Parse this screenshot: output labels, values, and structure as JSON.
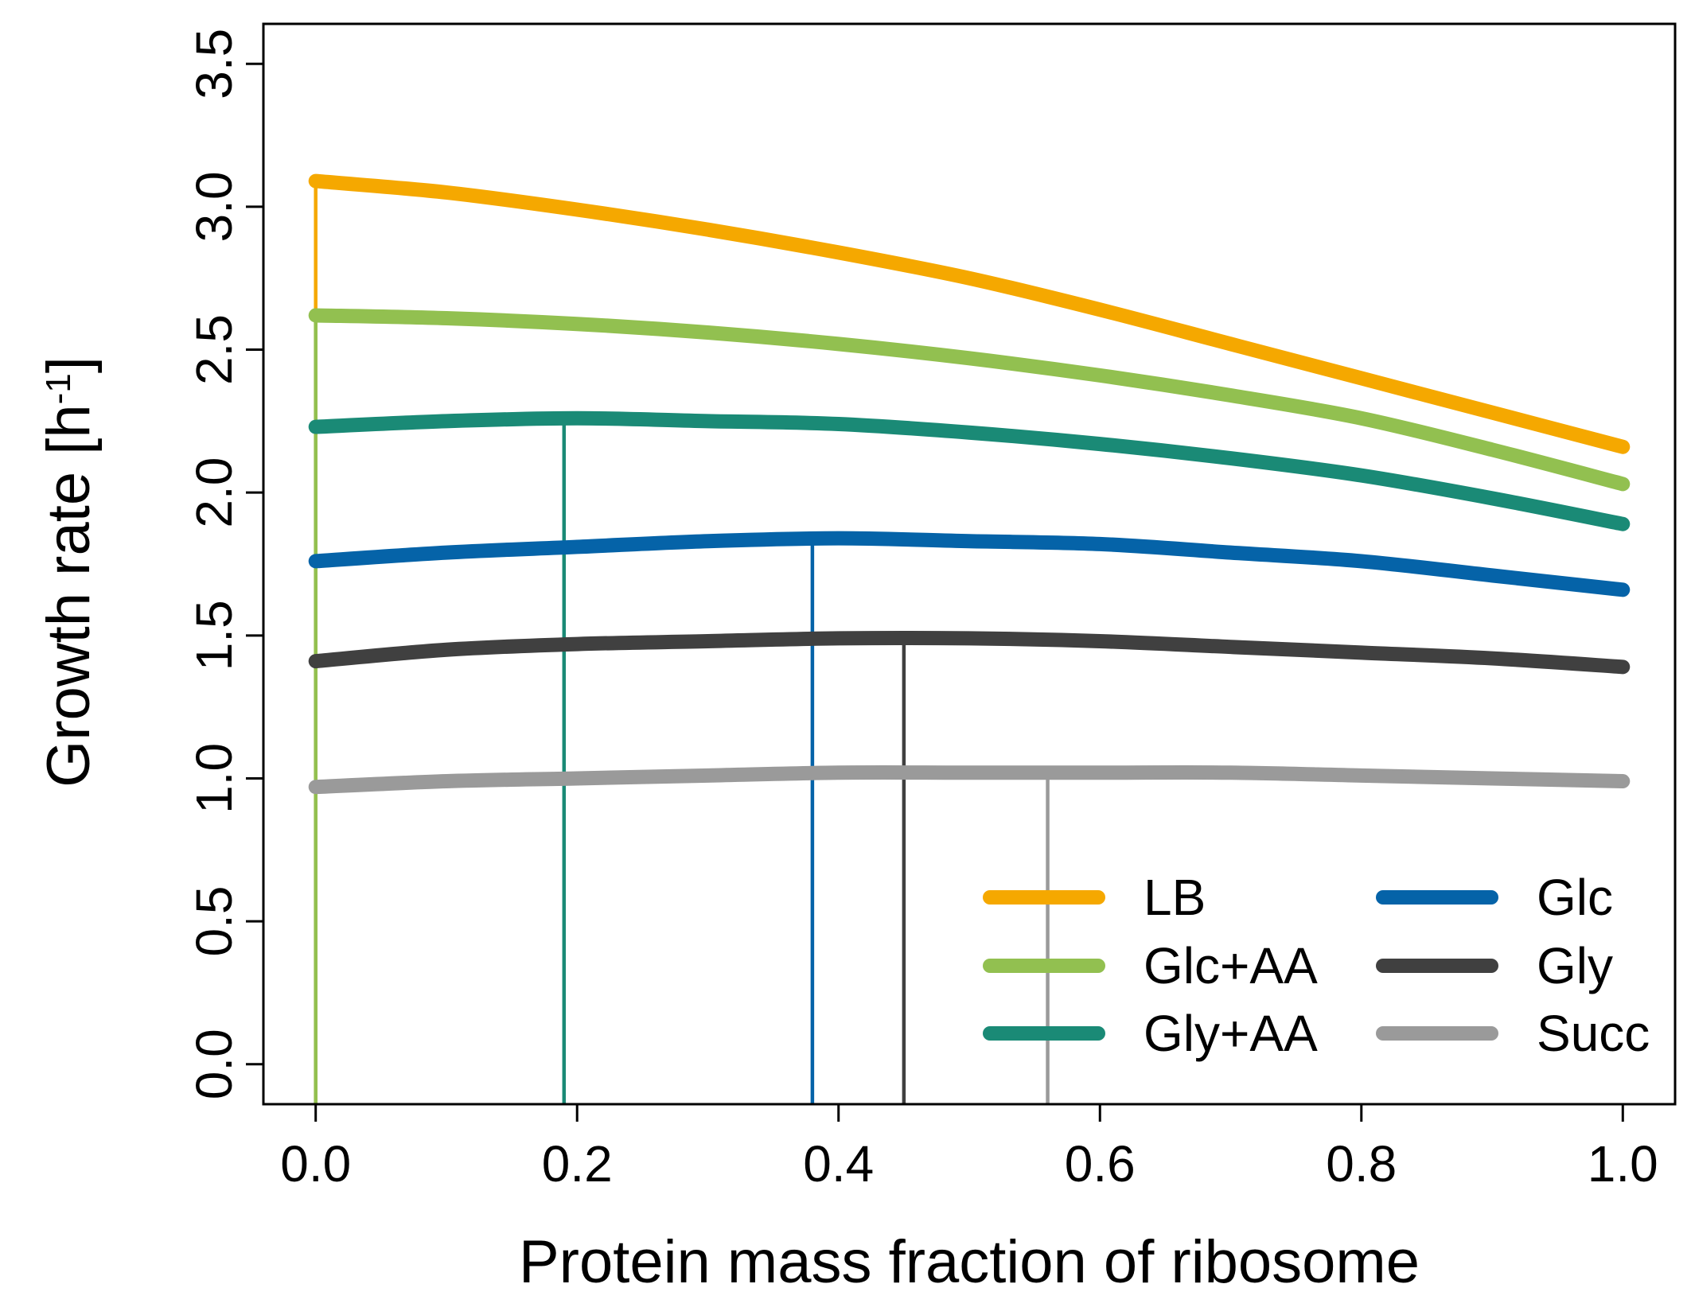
{
  "chart_data": {
    "type": "line",
    "xlabel": "Protein mass fraction of ribosome",
    "ylabel_main": "Growth rate [h",
    "ylabel_sup": "-1",
    "ylabel_close": "]",
    "xlim": [
      -0.04,
      1.04
    ],
    "ylim": [
      -0.14,
      3.64
    ],
    "x_ticks": [
      "0.0",
      "0.2",
      "0.4",
      "0.6",
      "0.8",
      "1.0"
    ],
    "y_ticks": [
      "0.0",
      "0.5",
      "1.0",
      "1.5",
      "2.0",
      "2.5",
      "3.0",
      "3.5"
    ],
    "grid": false,
    "legend_position": "bottom-right",
    "series": [
      {
        "name": "LB",
        "color": "#F5A800",
        "optimum_x": 0.0,
        "x": [
          0,
          0.1,
          0.2,
          0.3,
          0.4,
          0.5,
          0.6,
          0.7,
          0.8,
          0.9,
          1.0
        ],
        "y": [
          3.09,
          3.05,
          2.99,
          2.92,
          2.84,
          2.75,
          2.64,
          2.52,
          2.4,
          2.28,
          2.16
        ]
      },
      {
        "name": "Glc+AA",
        "color": "#92C050",
        "optimum_x": 0.0,
        "x": [
          0,
          0.1,
          0.2,
          0.3,
          0.4,
          0.5,
          0.6,
          0.7,
          0.8,
          0.9,
          1.0
        ],
        "y": [
          2.62,
          2.61,
          2.59,
          2.56,
          2.52,
          2.47,
          2.41,
          2.34,
          2.26,
          2.15,
          2.03
        ]
      },
      {
        "name": "Gly+AA",
        "color": "#1A8A76",
        "optimum_x": 0.19,
        "x": [
          0,
          0.1,
          0.2,
          0.3,
          0.4,
          0.5,
          0.6,
          0.7,
          0.8,
          0.9,
          1.0
        ],
        "y": [
          2.23,
          2.25,
          2.26,
          2.25,
          2.24,
          2.21,
          2.17,
          2.12,
          2.06,
          1.98,
          1.89
        ]
      },
      {
        "name": "Glc",
        "color": "#0563A8",
        "optimum_x": 0.38,
        "x": [
          0,
          0.1,
          0.2,
          0.3,
          0.4,
          0.5,
          0.6,
          0.7,
          0.8,
          0.9,
          1.0
        ],
        "y": [
          1.76,
          1.79,
          1.81,
          1.83,
          1.84,
          1.83,
          1.82,
          1.79,
          1.76,
          1.71,
          1.66
        ]
      },
      {
        "name": "Gly",
        "color": "#404040",
        "optimum_x": 0.45,
        "x": [
          0,
          0.1,
          0.2,
          0.3,
          0.4,
          0.5,
          0.6,
          0.7,
          0.8,
          0.9,
          1.0
        ],
        "y": [
          1.41,
          1.45,
          1.47,
          1.48,
          1.49,
          1.49,
          1.48,
          1.46,
          1.44,
          1.42,
          1.39
        ]
      },
      {
        "name": "Succ",
        "color": "#9A9A9A",
        "optimum_x": 0.56,
        "x": [
          0,
          0.1,
          0.2,
          0.3,
          0.4,
          0.5,
          0.6,
          0.7,
          0.8,
          0.9,
          1.0
        ],
        "y": [
          0.97,
          0.99,
          1.0,
          1.01,
          1.02,
          1.02,
          1.02,
          1.02,
          1.01,
          1.0,
          0.99
        ]
      }
    ]
  }
}
